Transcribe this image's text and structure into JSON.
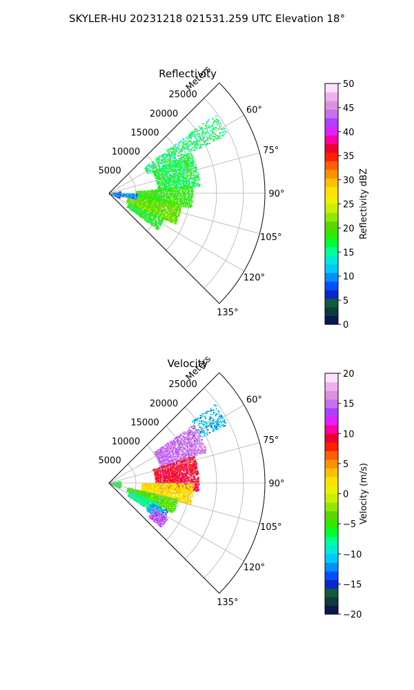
{
  "suptitle": "SKYLER-HU  20231218  021531.259 UTC Elevation 18°",
  "chart_data": [
    {
      "type": "heatmap",
      "title": "Reflectivity",
      "projection": "polar sector (PPI)",
      "range_label": "Meters",
      "range_ticks": [
        5000,
        10000,
        15000,
        20000,
        25000
      ],
      "range_tick_labels": [
        "5000",
        "10000",
        "15000",
        "20000",
        "25000"
      ],
      "range_lim": [
        0,
        29000
      ],
      "azimuth_lim_deg": [
        45,
        135
      ],
      "azimuth_ticks_deg": [
        60,
        75,
        90,
        105,
        120,
        135
      ],
      "azimuth_tick_labels": [
        "60°",
        "75°",
        "90°",
        "105°",
        "120°",
        "135°"
      ],
      "grid": true,
      "colorbar": {
        "label": "Reflectivity dBZ",
        "vmin": 0,
        "vmax": 50,
        "ticks": [
          0,
          5,
          10,
          15,
          20,
          25,
          30,
          35,
          40,
          45,
          50
        ],
        "tick_labels": [
          "0",
          "5",
          "10",
          "15",
          "20",
          "25",
          "30",
          "35",
          "40",
          "45",
          "50"
        ],
        "colors": [
          "#0a1850",
          "#0d3a3a",
          "#115a3c",
          "#0a28c8",
          "#0050ff",
          "#0090ff",
          "#00c8ff",
          "#00e8d8",
          "#00ff9a",
          "#00ff30",
          "#30e800",
          "#58d800",
          "#90e800",
          "#c8f000",
          "#eef000",
          "#ffe000",
          "#ffc000",
          "#ff9000",
          "#ff6000",
          "#ff2000",
          "#f00030",
          "#ff00a0",
          "#e020ff",
          "#b040ff",
          "#c870f0",
          "#e090e0",
          "#f0b0f0",
          "#ffe0ff"
        ]
      },
      "echoes": [
        {
          "az": [
            53,
            63
          ],
          "range": [
            8000,
            24500
          ],
          "value": 16,
          "spread": 3,
          "density": 0.45
        },
        {
          "az": [
            63,
            85
          ],
          "range": [
            9000,
            16800
          ],
          "value": 17,
          "spread": 3,
          "density": 0.75
        },
        {
          "az": [
            85,
            100
          ],
          "range": [
            5000,
            15500
          ],
          "value": 19,
          "spread": 3,
          "density": 0.85
        },
        {
          "az": [
            100,
            115
          ],
          "range": [
            3500,
            13500
          ],
          "value": 21,
          "spread": 3,
          "density": 0.9
        },
        {
          "az": [
            115,
            127
          ],
          "range": [
            4000,
            11000
          ],
          "value": 18,
          "spread": 3,
          "density": 0.75
        },
        {
          "az": [
            90,
            102
          ],
          "range": [
            2000,
            5000
          ],
          "value": 10,
          "spread": 3,
          "density": 0.35
        },
        {
          "az": [
            80,
            112
          ],
          "range": [
            0,
            2000
          ],
          "value": 9,
          "spread": 3,
          "density": 0.6
        }
      ]
    },
    {
      "type": "heatmap",
      "title": "Velocity",
      "projection": "polar sector (PPI)",
      "range_label": "Meters",
      "range_ticks": [
        5000,
        10000,
        15000,
        20000,
        25000
      ],
      "range_tick_labels": [
        "5000",
        "10000",
        "15000",
        "20000",
        "25000"
      ],
      "range_lim": [
        0,
        29000
      ],
      "azimuth_lim_deg": [
        45,
        135
      ],
      "azimuth_ticks_deg": [
        60,
        75,
        90,
        105,
        120,
        135
      ],
      "azimuth_tick_labels": [
        "60°",
        "75°",
        "90°",
        "105°",
        "120°",
        "135°"
      ],
      "grid": true,
      "colorbar": {
        "label": "Velocity (m/s)",
        "vmin": -20,
        "vmax": 20,
        "ticks": [
          -20,
          -15,
          -10,
          -5,
          0,
          5,
          10,
          15,
          20
        ],
        "tick_labels": [
          "−20",
          "−15",
          "−10",
          "−5",
          "0",
          "5",
          "10",
          "15",
          "20"
        ],
        "colors": [
          "#0a1850",
          "#0d3a3a",
          "#115a3c",
          "#0a28c8",
          "#0050ff",
          "#0090ff",
          "#00c8ff",
          "#00e8d8",
          "#00ff9a",
          "#00ff30",
          "#30e800",
          "#58d800",
          "#90e800",
          "#c8f000",
          "#eef000",
          "#ffe000",
          "#ffc000",
          "#ff9000",
          "#ff6000",
          "#ff2000",
          "#f00030",
          "#ff00a0",
          "#e020ff",
          "#b040ff",
          "#c870f0",
          "#e090e0",
          "#f0b0f0",
          "#ffe0ff"
        ]
      },
      "echoes": [
        {
          "az": [
            53,
            63
          ],
          "range": [
            19000,
            24500
          ],
          "value": -11,
          "spread": 3,
          "density": 0.5
        },
        {
          "az": [
            55,
            72
          ],
          "range": [
            10000,
            19000
          ],
          "value": 15,
          "spread": 2,
          "density": 0.8
        },
        {
          "az": [
            72,
            95
          ],
          "range": [
            8500,
            16500
          ],
          "value": 9,
          "spread": 2,
          "density": 0.85
        },
        {
          "az": [
            90,
            105
          ],
          "range": [
            6000,
            15500
          ],
          "value": 2,
          "spread": 2,
          "density": 0.85
        },
        {
          "az": [
            103,
            115
          ],
          "range": [
            3500,
            13000
          ],
          "value": -4,
          "spread": 2,
          "density": 0.85
        },
        {
          "az": [
            112,
            124
          ],
          "range": [
            4000,
            10000
          ],
          "value": -8,
          "spread": 2,
          "density": 0.8
        },
        {
          "az": [
            115,
            126
          ],
          "range": [
            8500,
            12000
          ],
          "value": -12,
          "spread": 2,
          "density": 0.7
        },
        {
          "az": [
            120,
            130
          ],
          "range": [
            9500,
            12500
          ],
          "value": 14,
          "spread": 2,
          "density": 0.75
        },
        {
          "az": [
            80,
            112
          ],
          "range": [
            0,
            2000
          ],
          "value": -6,
          "spread": 4,
          "density": 0.6
        }
      ]
    }
  ]
}
